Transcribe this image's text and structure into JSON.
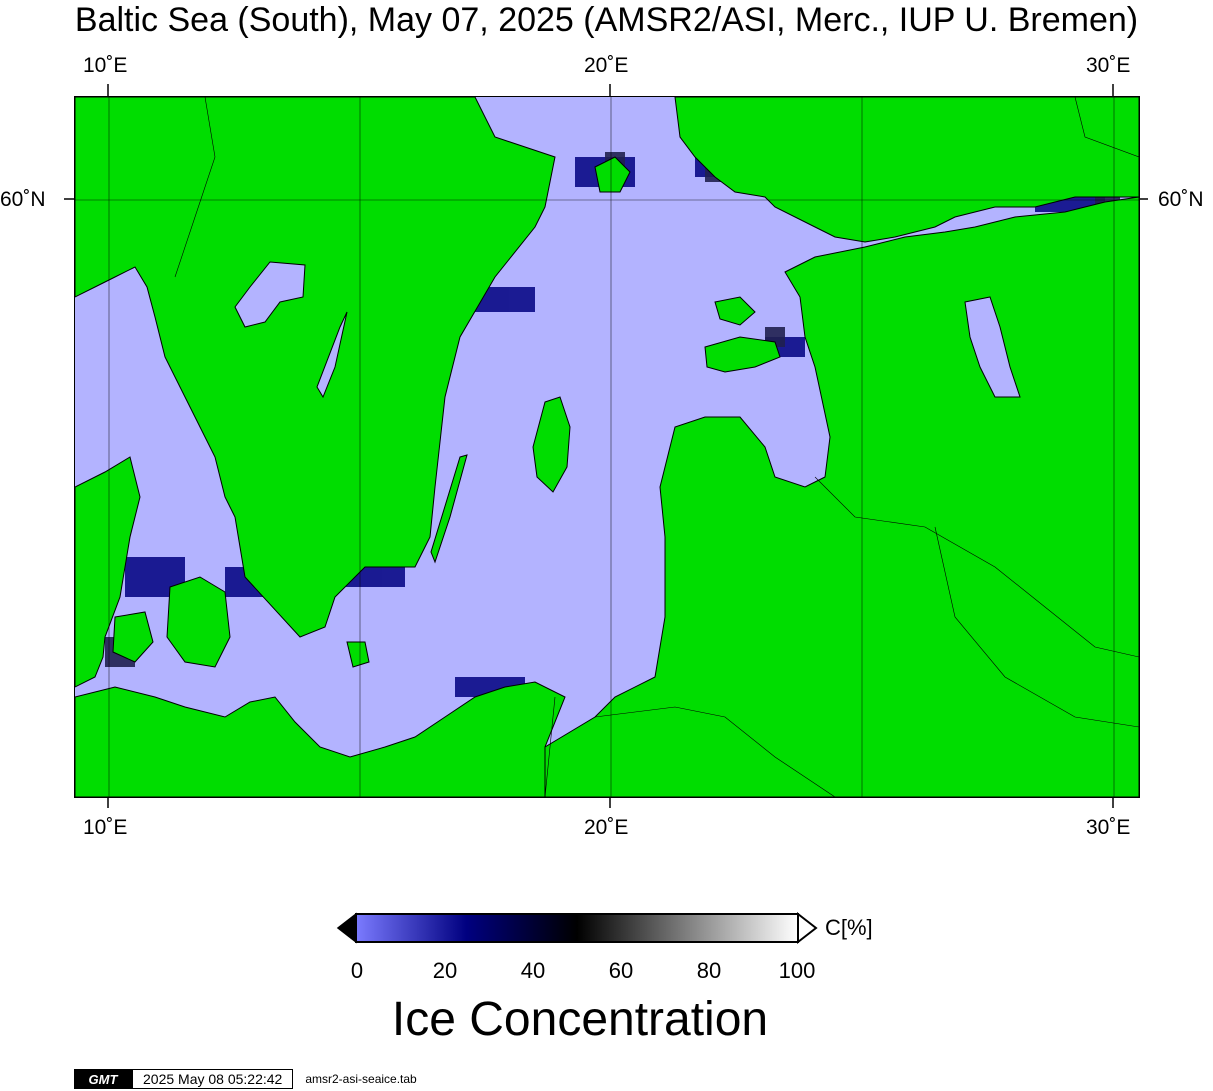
{
  "title": "Baltic Sea (South), May 07, 2025 (AMSR2/ASI, Merc., IUP U. Bremen)",
  "map": {
    "lon_range": [
      9.3,
      30.5
    ],
    "lat_range": [
      53.8,
      60.7
    ],
    "projection": "Merc.",
    "top_lon_labels": [
      "10˚E",
      "20˚E",
      "30˚E"
    ],
    "bottom_lon_labels": [
      "10˚E",
      "20˚E",
      "30˚E"
    ],
    "left_lat_label": "60˚N",
    "right_lat_label": "60˚N",
    "colors": {
      "land": "#00dd00",
      "sea": "#b3b3ff",
      "ice_marginal": "#777777",
      "coast": "#000000"
    }
  },
  "colorbar": {
    "ticks": [
      "0",
      "20",
      "40",
      "60",
      "80",
      "100"
    ],
    "unit": "C[%]",
    "label": "Ice Concentration",
    "stops": [
      "#7b7bff",
      "#000080",
      "#000000",
      "#808080",
      "#ffffff"
    ]
  },
  "footer": {
    "logo": "GMT",
    "timestamp": "2025 May 08 05:22:42",
    "filename": "amsr2-asi-seaice.tab"
  }
}
